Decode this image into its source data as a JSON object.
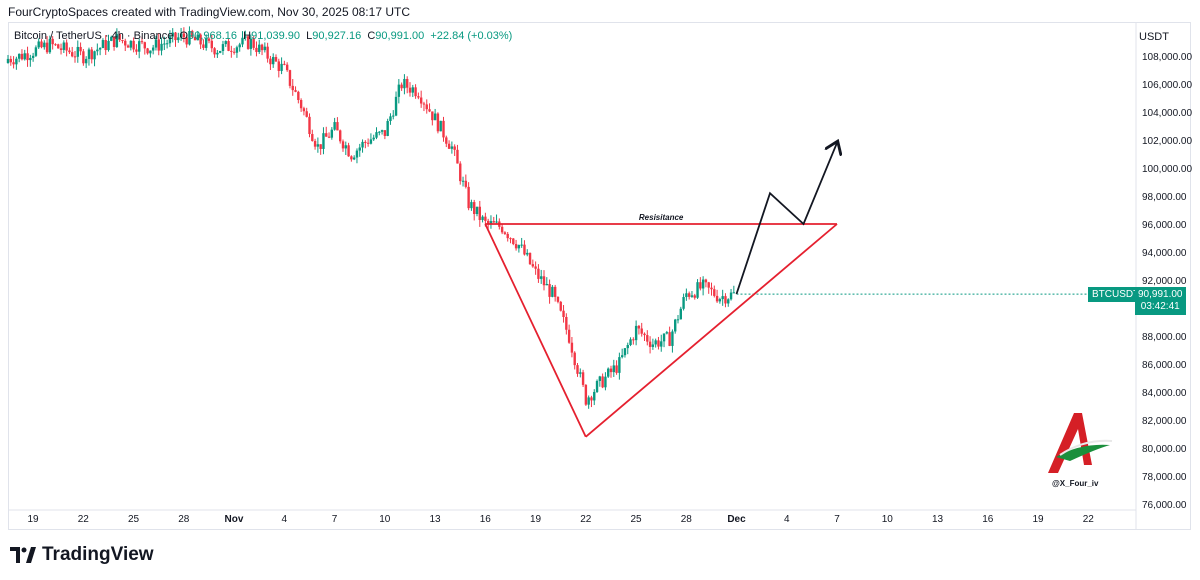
{
  "header": {
    "author_line": "FourCryptoSpaces created with TradingView.com, Nov 30, 2025 08:17 UTC"
  },
  "legend": {
    "symbol": "Bitcoin / TetherUS · 4h · Binance",
    "o_label": "O",
    "o_value": "90,968.16",
    "h_label": "H",
    "h_value": "91,039.90",
    "l_label": "L",
    "l_value": "90,927.16",
    "c_label": "C",
    "c_value": "90,991.00",
    "change": "+22.84 (+0.03%)"
  },
  "price_scale": {
    "currency": "USDT",
    "labels": [
      "108,000.00",
      "106,000.00",
      "104,000.00",
      "102,000.00",
      "100,000.00",
      "98,000.00",
      "96,000.00",
      "94,000.00",
      "92,000.00",
      "88,000.00",
      "86,000.00",
      "84,000.00",
      "82,000.00",
      "80,000.00",
      "78,000.00",
      "76,000.00"
    ]
  },
  "current": {
    "ticker": "BTCUSDT",
    "price": "90,991.00",
    "countdown": "03:42:41"
  },
  "watermark": {
    "handle": "@X_Four_iv"
  },
  "footer": {
    "brand": "TradingView"
  },
  "colors": {
    "up": "#089981",
    "down": "#f23645",
    "pattern": "#e5202f",
    "projection": "#131722",
    "badge": "#089981"
  },
  "chart_data": {
    "type": "candlestick",
    "title": "Bitcoin / TetherUS · 4h · Binance",
    "ylim": [
      75000,
      109500
    ],
    "x_ticks": [
      "19",
      "22",
      "25",
      "28",
      "Nov",
      "4",
      "7",
      "10",
      "13",
      "16",
      "19",
      "22",
      "25",
      "28",
      "Dec",
      "4",
      "7",
      "10",
      "13",
      "16",
      "19",
      "22"
    ],
    "price_path": [
      {
        "date": "Oct 16",
        "price": 107500
      },
      {
        "date": "Oct 18",
        "price": 107900
      },
      {
        "date": "Oct 20",
        "price": 108800
      },
      {
        "date": "Oct 22",
        "price": 108000
      },
      {
        "date": "Oct 24",
        "price": 109200
      },
      {
        "date": "Oct 26",
        "price": 108600
      },
      {
        "date": "Oct 28",
        "price": 109400
      },
      {
        "date": "Oct 30",
        "price": 108500
      },
      {
        "date": "Nov 1",
        "price": 109000
      },
      {
        "date": "Nov 3",
        "price": 107000
      },
      {
        "date": "Nov 4",
        "price": 104500
      },
      {
        "date": "Nov 5",
        "price": 101500
      },
      {
        "date": "Nov 6",
        "price": 102800
      },
      {
        "date": "Nov 7",
        "price": 101000
      },
      {
        "date": "Nov 8",
        "price": 102000
      },
      {
        "date": "Nov 9",
        "price": 102500
      },
      {
        "date": "Nov 10",
        "price": 106000
      },
      {
        "date": "Nov 11",
        "price": 105500
      },
      {
        "date": "Nov 12",
        "price": 103500
      },
      {
        "date": "Nov 13",
        "price": 101500
      },
      {
        "date": "Nov 14",
        "price": 97500
      },
      {
        "date": "Nov 15",
        "price": 96000
      },
      {
        "date": "Nov 16",
        "price": 95800
      },
      {
        "date": "Nov 17",
        "price": 94500
      },
      {
        "date": "Nov 18",
        "price": 92500
      },
      {
        "date": "Nov 19",
        "price": 91000
      },
      {
        "date": "Nov 20",
        "price": 88000
      },
      {
        "date": "Nov 21",
        "price": 83500
      },
      {
        "date": "Nov 22",
        "price": 84800
      },
      {
        "date": "Nov 23",
        "price": 86000
      },
      {
        "date": "Nov 24",
        "price": 88500
      },
      {
        "date": "Nov 25",
        "price": 87500
      },
      {
        "date": "Nov 26",
        "price": 87800
      },
      {
        "date": "Nov 27",
        "price": 91000
      },
      {
        "date": "Nov 28",
        "price": 91500
      },
      {
        "date": "Nov 29",
        "price": 90800
      },
      {
        "date": "Nov 30",
        "price": 90991
      }
    ],
    "annotations": {
      "resistance": {
        "label": "Resisitance",
        "price": 96000,
        "from": "Nov 15",
        "to": "Dec 6"
      },
      "left_leg": [
        {
          "date": "Nov 15",
          "price": 96000
        },
        {
          "date": "Nov 21",
          "price": 80800
        }
      ],
      "support": [
        {
          "date": "Nov 21",
          "price": 80800
        },
        {
          "date": "Dec 6",
          "price": 96000
        }
      ],
      "projection": [
        {
          "date": "Nov 30",
          "price": 91000
        },
        {
          "date": "Dec 2",
          "price": 98200
        },
        {
          "date": "Dec 4",
          "price": 96000
        },
        {
          "date": "Dec 6",
          "price": 101800
        }
      ]
    }
  }
}
